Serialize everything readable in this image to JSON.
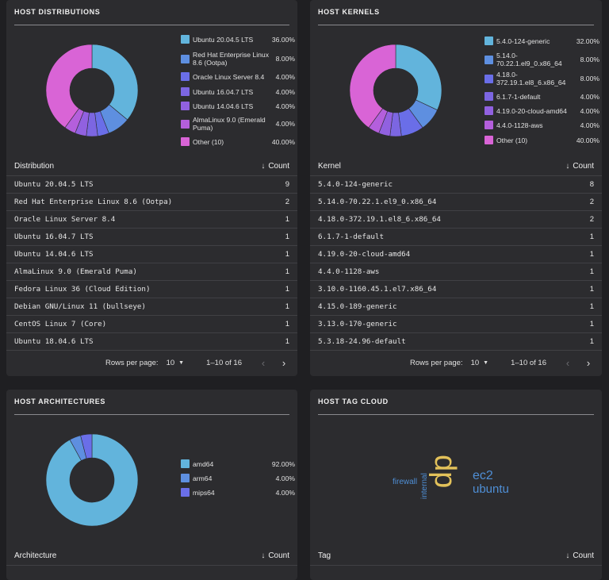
{
  "distributions": {
    "title": "HOST DISTRIBUTIONS",
    "legend": [
      {
        "label": "Ubuntu 20.04.5 LTS",
        "pct": "36.00%",
        "value": 36,
        "color": "#62b4dc"
      },
      {
        "label": "Red Hat Enterprise Linux 8.6 (Ootpa)",
        "pct": "8.00%",
        "value": 8,
        "color": "#5e8fe0"
      },
      {
        "label": "Oracle Linux Server 8.4",
        "pct": "4.00%",
        "value": 4,
        "color": "#6a6ee8"
      },
      {
        "label": "Ubuntu 16.04.7 LTS",
        "pct": "4.00%",
        "value": 4,
        "color": "#7c66e2"
      },
      {
        "label": "Ubuntu 14.04.6 LTS",
        "pct": "4.00%",
        "value": 4,
        "color": "#9161e0"
      },
      {
        "label": "AlmaLinux 9.0 (Emerald Puma)",
        "pct": "4.00%",
        "value": 4,
        "color": "#b45fdc"
      },
      {
        "label": "Other (10)",
        "pct": "40.00%",
        "value": 40,
        "color": "#d964d6"
      }
    ],
    "columns": {
      "name": "Distribution",
      "count": "Count"
    },
    "rows": [
      {
        "name": "Ubuntu 20.04.5 LTS",
        "count": "9"
      },
      {
        "name": "Red Hat Enterprise Linux 8.6 (Ootpa)",
        "count": "2"
      },
      {
        "name": "Oracle Linux Server 8.4",
        "count": "1"
      },
      {
        "name": "Ubuntu 16.04.7 LTS",
        "count": "1"
      },
      {
        "name": "Ubuntu 14.04.6 LTS",
        "count": "1"
      },
      {
        "name": "AlmaLinux 9.0 (Emerald Puma)",
        "count": "1"
      },
      {
        "name": "Fedora Linux 36 (Cloud Edition)",
        "count": "1"
      },
      {
        "name": "Debian GNU/Linux 11 (bullseye)",
        "count": "1"
      },
      {
        "name": "CentOS Linux 7 (Core)",
        "count": "1"
      },
      {
        "name": "Ubuntu 18.04.6 LTS",
        "count": "1"
      }
    ],
    "pager": {
      "rows_label": "Rows per page:",
      "rows_value": "10",
      "range": "1–10 of 16"
    }
  },
  "kernels": {
    "title": "HOST KERNELS",
    "legend": [
      {
        "label": "5.4.0-124-generic",
        "pct": "32.00%",
        "value": 32,
        "color": "#62b4dc"
      },
      {
        "label": "5.14.0-70.22.1.el9_0.x86_64",
        "pct": "8.00%",
        "value": 8,
        "color": "#5e8fe0"
      },
      {
        "label": "4.18.0-372.19.1.el8_6.x86_64",
        "pct": "8.00%",
        "value": 8,
        "color": "#6a6ee8"
      },
      {
        "label": "6.1.7-1-default",
        "pct": "4.00%",
        "value": 4,
        "color": "#7c66e2"
      },
      {
        "label": "4.19.0-20-cloud-amd64",
        "pct": "4.00%",
        "value": 4,
        "color": "#9161e0"
      },
      {
        "label": "4.4.0-1128-aws",
        "pct": "4.00%",
        "value": 4,
        "color": "#b45fdc"
      },
      {
        "label": "Other (10)",
        "pct": "40.00%",
        "value": 40,
        "color": "#d964d6"
      }
    ],
    "columns": {
      "name": "Kernel",
      "count": "Count"
    },
    "rows": [
      {
        "name": "5.4.0-124-generic",
        "count": "8"
      },
      {
        "name": "5.14.0-70.22.1.el9_0.x86_64",
        "count": "2"
      },
      {
        "name": "4.18.0-372.19.1.el8_6.x86_64",
        "count": "2"
      },
      {
        "name": "6.1.7-1-default",
        "count": "1"
      },
      {
        "name": "4.19.0-20-cloud-amd64",
        "count": "1"
      },
      {
        "name": "4.4.0-1128-aws",
        "count": "1"
      },
      {
        "name": "3.10.0-1160.45.1.el7.x86_64",
        "count": "1"
      },
      {
        "name": "4.15.0-189-generic",
        "count": "1"
      },
      {
        "name": "3.13.0-170-generic",
        "count": "1"
      },
      {
        "name": "5.3.18-24.96-default",
        "count": "1"
      }
    ],
    "pager": {
      "rows_label": "Rows per page:",
      "rows_value": "10",
      "range": "1–10 of 16"
    }
  },
  "architectures": {
    "title": "HOST ARCHITECTURES",
    "legend": [
      {
        "label": "amd64",
        "pct": "92.00%",
        "value": 92,
        "color": "#62b4dc"
      },
      {
        "label": "arm64",
        "pct": "4.00%",
        "value": 4,
        "color": "#5e8fe0"
      },
      {
        "label": "mips64",
        "pct": "4.00%",
        "value": 4,
        "color": "#6a6ee8"
      }
    ],
    "columns": {
      "name": "Architecture",
      "count": "Count"
    }
  },
  "tagcloud": {
    "title": "HOST TAG CLOUD",
    "tags": [
      {
        "text": "firewall",
        "color": "#4f8fd6"
      },
      {
        "text": "internal",
        "color": "#4f8fd6"
      },
      {
        "text": "dp",
        "color": "#e2c15a"
      },
      {
        "text": "ec2",
        "color": "#4f8fd6"
      },
      {
        "text": "ubuntu",
        "color": "#4f8fd6"
      }
    ],
    "columns": {
      "name": "Tag",
      "count": "Count"
    }
  }
}
